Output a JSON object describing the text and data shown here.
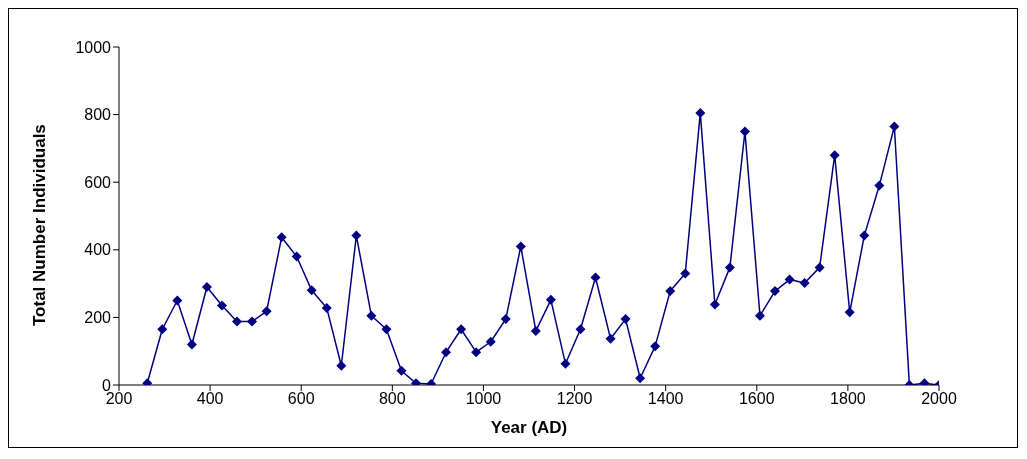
{
  "chart_data": {
    "type": "line",
    "xlabel": "Year (AD)",
    "ylabel": "Total Number Individuals",
    "x": [
      262,
      295,
      328,
      360,
      393,
      426,
      459,
      492,
      524,
      557,
      590,
      623,
      656,
      688,
      721,
      754,
      787,
      820,
      852,
      885,
      918,
      951,
      984,
      1016,
      1049,
      1082,
      1115,
      1148,
      1180,
      1213,
      1246,
      1279,
      1312,
      1344,
      1377,
      1410,
      1443,
      1476,
      1508,
      1541,
      1574,
      1607,
      1640,
      1672,
      1705,
      1738,
      1771,
      1804,
      1836,
      1869,
      1902,
      1935,
      1968,
      2000
    ],
    "series": [
      {
        "color": "#000080",
        "values": [
          5,
          165,
          250,
          120,
          290,
          235,
          188,
          188,
          218,
          437,
          380,
          280,
          228,
          57,
          442,
          205,
          165,
          42,
          5,
          3,
          97,
          165,
          97,
          128,
          195,
          410,
          160,
          252,
          63,
          165,
          318,
          137,
          195,
          20,
          115,
          278,
          330,
          805,
          238,
          348,
          750,
          205,
          278,
          312,
          302,
          348,
          680,
          215,
          442,
          590,
          765,
          0,
          5,
          0
        ]
      }
    ],
    "xlim": [
      200,
      2000
    ],
    "xticks": [
      200,
      400,
      600,
      800,
      1000,
      1200,
      1400,
      1600,
      1800,
      2000
    ],
    "ylim": [
      0,
      1000
    ],
    "yticks": [
      0,
      200,
      400,
      600,
      800,
      1000
    ],
    "grid": false,
    "legend": false,
    "marker": "diamond",
    "line_style": "solid"
  }
}
